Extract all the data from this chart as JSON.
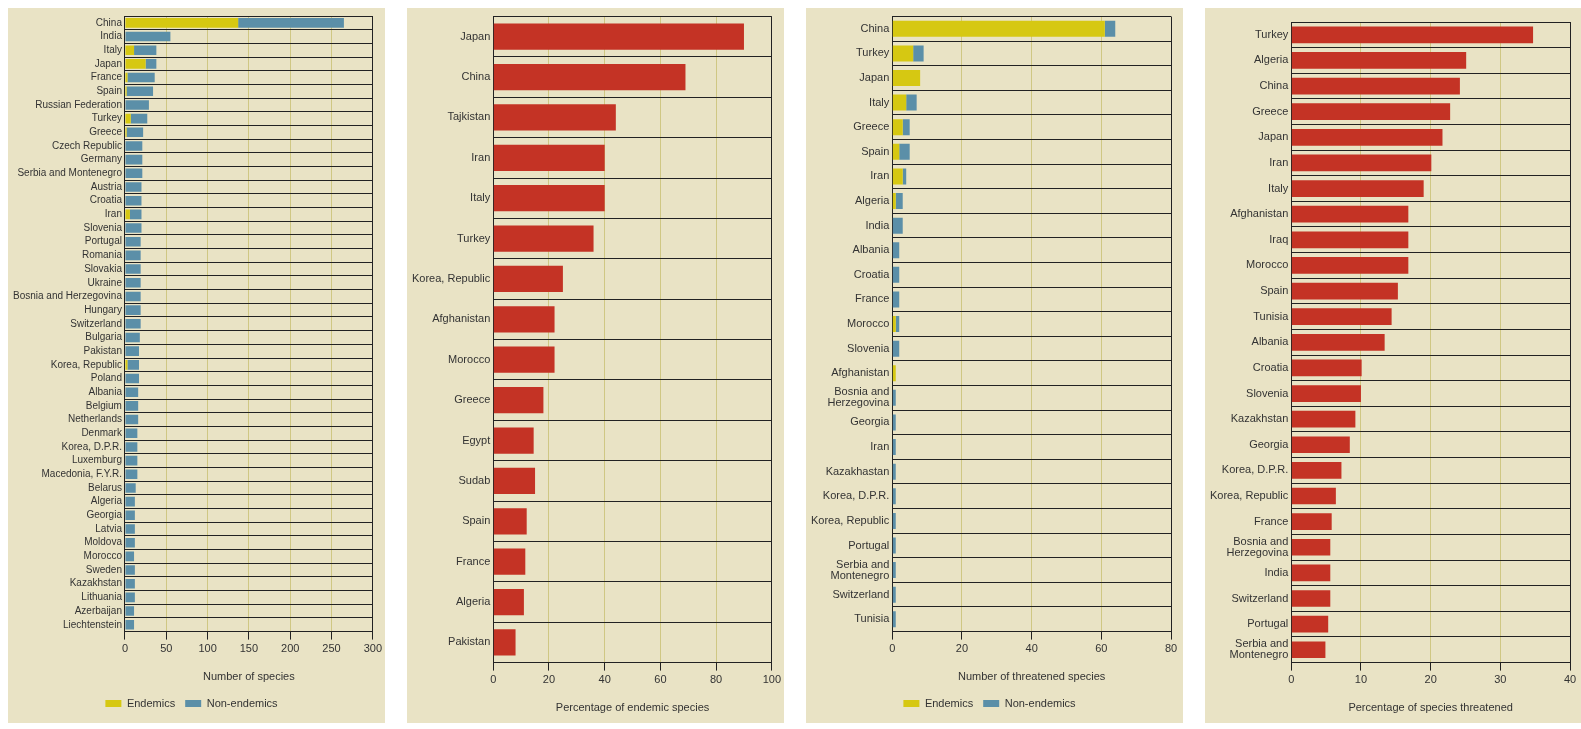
{
  "chart_data": [
    {
      "type": "bar",
      "orientation": "horizontal",
      "stacked": true,
      "xlabel": "Number of species",
      "legend": "bottom",
      "grid": true,
      "categories": [
        "China",
        "India",
        "Italy",
        "Japan",
        "France",
        "Spain",
        "Russian Federation",
        "Turkey",
        "Greece",
        "Czech Republic",
        "Germany",
        "Serbia and Montenegro",
        "Austria",
        "Croatia",
        "Iran",
        "Slovenia",
        "Portugal",
        "Romania",
        "Slovakia",
        "Ukraine",
        "Bosnia and Herzegovina",
        "Hungary",
        "Switzerland",
        "Bulgaria",
        "Pakistan",
        "Korea, Republic",
        "Poland",
        "Albania",
        "Belgium",
        "Netherlands",
        "Denmark",
        "Korea, D.P.R.",
        "Luxemburg",
        "Macedonia, F.Y.R.",
        "Belarus",
        "Algeria",
        "Georgia",
        "Latvia",
        "Moldova",
        "Morocco",
        "Sweden",
        "Kazakhstan",
        "Lithuania",
        "Azerbaijan",
        "Liechtenstein"
      ],
      "series": [
        {
          "name": "Endemics",
          "color": "#d6c812",
          "values": [
            137,
            0,
            11,
            25,
            3,
            2,
            0,
            7,
            2,
            0,
            0,
            0,
            0,
            0,
            6,
            0,
            0,
            0,
            0,
            0,
            0,
            0,
            0,
            0,
            null,
            3,
            0,
            0,
            0,
            0,
            0,
            0,
            0,
            0,
            0,
            0,
            0,
            0,
            0,
            null,
            0,
            0,
            0,
            0,
            0
          ]
        },
        {
          "name": "Non-endemics",
          "color": "#5b8fa8",
          "values": [
            128,
            55,
            27,
            13,
            33,
            32,
            29,
            20,
            20,
            21,
            21,
            21,
            20,
            20,
            14,
            20,
            19,
            19,
            19,
            19,
            19,
            19,
            19,
            18,
            17,
            14,
            17,
            16,
            16,
            16,
            15,
            15,
            15,
            15,
            13,
            12,
            12,
            12,
            12,
            11,
            12,
            12,
            12,
            11,
            11
          ]
        }
      ],
      "xlim": [
        0,
        300
      ],
      "xticks": [
        0,
        50,
        100,
        150,
        200,
        250,
        300
      ]
    },
    {
      "type": "bar",
      "orientation": "horizontal",
      "xlabel": "Percentage of endemic species",
      "grid": true,
      "color": "#c43325",
      "categories": [
        "Japan",
        "China",
        "Tajkistan",
        "Iran",
        "Italy",
        "Turkey",
        "Korea, Republic",
        "Afghanistan",
        "Morocco",
        "Greece",
        "Egypt",
        "Sudab",
        "Spain",
        "France",
        "Algeria",
        "Pakistan"
      ],
      "values": [
        90,
        69,
        44,
        40,
        40,
        36,
        25,
        22,
        22,
        18,
        14.5,
        15,
        12,
        11.5,
        11,
        8
      ],
      "xlim": [
        0,
        100
      ],
      "xticks": [
        0,
        20,
        40,
        60,
        80,
        100
      ]
    },
    {
      "type": "bar",
      "orientation": "horizontal",
      "stacked": true,
      "xlabel": "Number of threatened species",
      "legend": "bottom",
      "grid": true,
      "categories": [
        "China",
        "Turkey",
        "Japan",
        "Italy",
        "Greece",
        "Spain",
        "Iran",
        "Algeria",
        "India",
        "Albania",
        "Croatia",
        "France",
        "Morocco",
        "Slovenia",
        "Afghanistan",
        "Bosnia and\nHerzegovina",
        "Georgia",
        "Iran",
        "Kazakhastan",
        "Korea, D.P.R.",
        "Korea, Republic",
        "Portugal",
        "Serbia and\nMontenegro",
        "Switzerland",
        "Tunisia"
      ],
      "series": [
        {
          "name": "Endemics",
          "color": "#d6c812",
          "values": [
            61,
            6,
            8,
            4,
            3,
            2,
            3,
            1,
            0,
            0,
            0,
            0,
            1,
            0,
            1,
            0,
            0,
            0,
            0,
            0,
            0,
            0,
            0,
            0,
            0
          ]
        },
        {
          "name": "Non-endemics",
          "color": "#5b8fa8",
          "values": [
            3,
            3,
            0,
            3,
            2,
            3,
            1,
            2,
            3,
            2,
            2,
            2,
            1,
            2,
            0,
            1,
            1,
            1,
            1,
            1,
            1,
            1,
            1,
            1,
            1
          ]
        }
      ],
      "xlim": [
        0,
        80
      ],
      "xticks": [
        0,
        20,
        40,
        60,
        80
      ]
    },
    {
      "type": "bar",
      "orientation": "horizontal",
      "xlabel": "Percentage of species threatened",
      "grid": true,
      "color": "#c43325",
      "categories": [
        "Turkey",
        "Algeria",
        "China",
        "Greece",
        "Japan",
        "Iran",
        "Italy",
        "Afghanistan",
        "Iraq",
        "Morocco",
        "Spain",
        "Tunisia",
        "Albania",
        "Croatia",
        "Slovenia",
        "Kazakhstan",
        "Georgia",
        "Korea, D.P.R.",
        "Korea, Republic",
        "France",
        "Bosnia and\nHerzegovina",
        "India",
        "Switzerland",
        "Portugal",
        "Serbia and\nMontenegro"
      ],
      "values": [
        34.7,
        25.1,
        24.2,
        22.8,
        21.7,
        20.1,
        19,
        16.8,
        16.8,
        16.8,
        15.3,
        14.4,
        13.4,
        10.1,
        10,
        9.2,
        8.4,
        7.2,
        6.4,
        5.8,
        5.6,
        5.6,
        5.6,
        5.3,
        4.9
      ],
      "xlim": [
        0,
        40
      ],
      "xticks": [
        0,
        10,
        20,
        30,
        40
      ]
    }
  ]
}
